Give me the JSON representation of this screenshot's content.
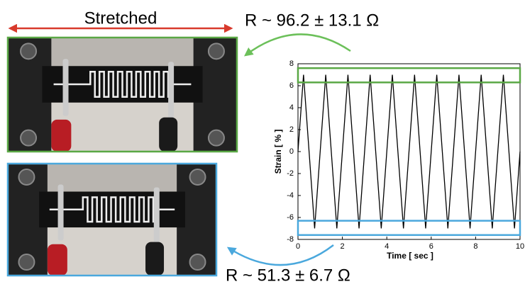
{
  "annotations": {
    "stretched": "Stretched",
    "r_stretched": "R ~ 96.2 ± 13.1 Ω",
    "r_relaxed": "R ~ 51.3 ± 6.7 Ω"
  },
  "chart_data": {
    "type": "line",
    "xlabel": "Time [ sec ]",
    "ylabel": "Strain [ % ]",
    "x": [
      0,
      0.25,
      0.75,
      1.25,
      1.75,
      2.25,
      2.75,
      3.25,
      3.75,
      4.25,
      4.75,
      5.25,
      5.75,
      6.25,
      6.75,
      7.25,
      7.75,
      8.25,
      8.75,
      9.25,
      9.75,
      10
    ],
    "series": [
      {
        "color": "#000000",
        "values": [
          0,
          7,
          -7,
          7,
          -7,
          7,
          -7,
          7,
          -7,
          7,
          -7,
          7,
          -7,
          7,
          -7,
          7,
          -7,
          7,
          -7,
          7,
          -7,
          0
        ]
      }
    ],
    "xlim": [
      0,
      10
    ],
    "ylim": [
      -8,
      8
    ],
    "xticks": [
      0,
      2,
      4,
      6,
      8,
      10
    ],
    "yticks": [
      -8,
      -6,
      -4,
      -2,
      0,
      2,
      4,
      6,
      8
    ],
    "bands": [
      {
        "color": "#5aa845",
        "range": [
          6.3,
          7.6
        ]
      },
      {
        "color": "#4aa8dd",
        "range": [
          -7.6,
          -6.3
        ]
      }
    ]
  }
}
